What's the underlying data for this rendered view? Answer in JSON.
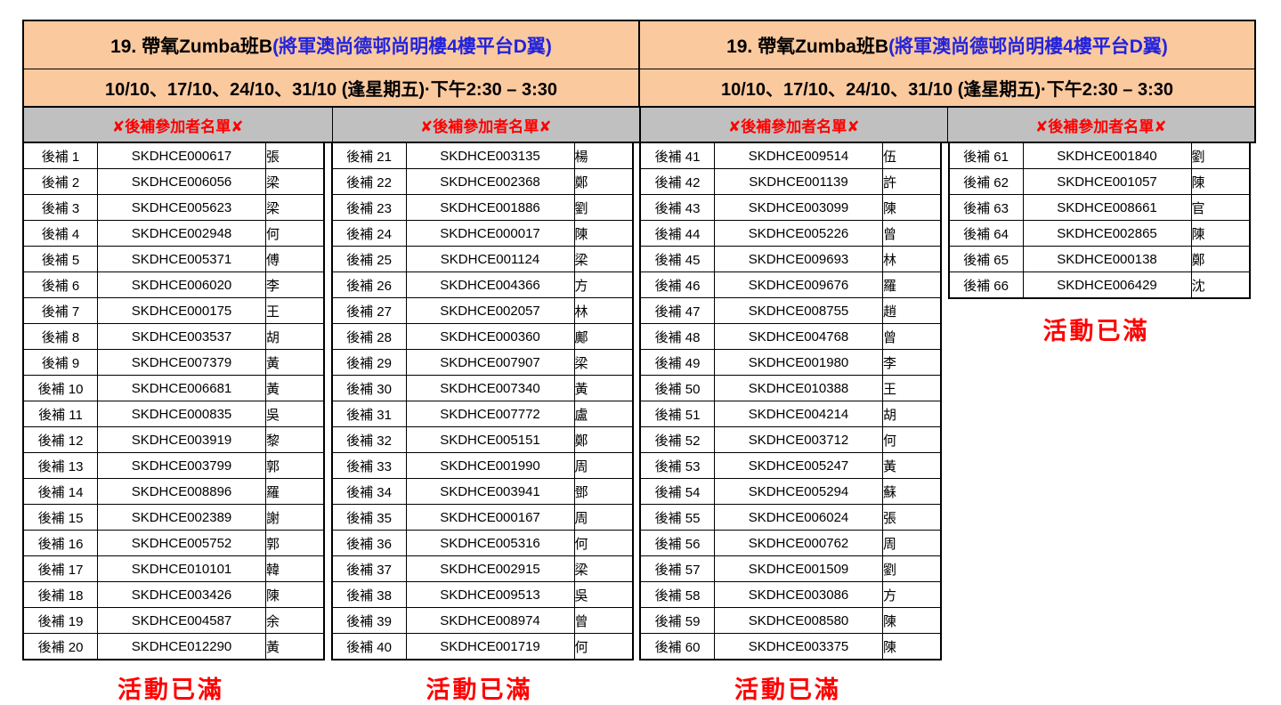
{
  "header": {
    "title_black": "19. 帶氧Zumba班B ",
    "title_blue": "(將軍澳尚德邨尚明樓4樓平台D翼)",
    "schedule": "10/10、17/10、24/10、31/10 (逢星期五)·下午2:30 – 3:30"
  },
  "labels": {
    "waitlist_header": "✘後補參加者名單✘",
    "activity_full": "活動已滿"
  },
  "colors": {
    "header_bg": "#FBC99E",
    "banner_bg": "#C0C0C0",
    "alert_red": "#FF0000",
    "location_blue": "#2323DC",
    "border": "#000000"
  },
  "groups": [
    {
      "rows": [
        {
          "label": "後補 1",
          "code": "SKDHCE000617",
          "name": "張"
        },
        {
          "label": "後補 2",
          "code": "SKDHCE006056",
          "name": "梁"
        },
        {
          "label": "後補 3",
          "code": "SKDHCE005623",
          "name": "梁"
        },
        {
          "label": "後補 4",
          "code": "SKDHCE002948",
          "name": "何"
        },
        {
          "label": "後補 5",
          "code": "SKDHCE005371",
          "name": "傅"
        },
        {
          "label": "後補 6",
          "code": "SKDHCE006020",
          "name": "李"
        },
        {
          "label": "後補 7",
          "code": "SKDHCE000175",
          "name": "王"
        },
        {
          "label": "後補 8",
          "code": "SKDHCE003537",
          "name": "胡"
        },
        {
          "label": "後補 9",
          "code": "SKDHCE007379",
          "name": "黃"
        },
        {
          "label": "後補 10",
          "code": "SKDHCE006681",
          "name": "黃"
        },
        {
          "label": "後補 11",
          "code": "SKDHCE000835",
          "name": "吳"
        },
        {
          "label": "後補 12",
          "code": "SKDHCE003919",
          "name": "黎"
        },
        {
          "label": "後補 13",
          "code": "SKDHCE003799",
          "name": "郭"
        },
        {
          "label": "後補 14",
          "code": "SKDHCE008896",
          "name": "羅"
        },
        {
          "label": "後補 15",
          "code": "SKDHCE002389",
          "name": "謝"
        },
        {
          "label": "後補 16",
          "code": "SKDHCE005752",
          "name": "郭"
        },
        {
          "label": "後補 17",
          "code": "SKDHCE010101",
          "name": "韓"
        },
        {
          "label": "後補 18",
          "code": "SKDHCE003426",
          "name": "陳"
        },
        {
          "label": "後補 19",
          "code": "SKDHCE004587",
          "name": "余"
        },
        {
          "label": "後補 20",
          "code": "SKDHCE012290",
          "name": "黃"
        }
      ]
    },
    {
      "rows": [
        {
          "label": "後補 21",
          "code": "SKDHCE003135",
          "name": "楊"
        },
        {
          "label": "後補 22",
          "code": "SKDHCE002368",
          "name": "鄭"
        },
        {
          "label": "後補 23",
          "code": "SKDHCE001886",
          "name": "劉"
        },
        {
          "label": "後補 24",
          "code": "SKDHCE000017",
          "name": "陳"
        },
        {
          "label": "後補 25",
          "code": "SKDHCE001124",
          "name": "梁"
        },
        {
          "label": "後補 26",
          "code": "SKDHCE004366",
          "name": "方"
        },
        {
          "label": "後補 27",
          "code": "SKDHCE002057",
          "name": "林"
        },
        {
          "label": "後補 28",
          "code": "SKDHCE000360",
          "name": "鄺"
        },
        {
          "label": "後補 29",
          "code": "SKDHCE007907",
          "name": "梁"
        },
        {
          "label": "後補 30",
          "code": "SKDHCE007340",
          "name": "黃"
        },
        {
          "label": "後補 31",
          "code": "SKDHCE007772",
          "name": "盧"
        },
        {
          "label": "後補 32",
          "code": "SKDHCE005151",
          "name": "鄭"
        },
        {
          "label": "後補 33",
          "code": "SKDHCE001990",
          "name": "周"
        },
        {
          "label": "後補 34",
          "code": "SKDHCE003941",
          "name": "鄧"
        },
        {
          "label": "後補 35",
          "code": "SKDHCE000167",
          "name": "周"
        },
        {
          "label": "後補 36",
          "code": "SKDHCE005316",
          "name": "何"
        },
        {
          "label": "後補 37",
          "code": "SKDHCE002915",
          "name": "梁"
        },
        {
          "label": "後補 38",
          "code": "SKDHCE009513",
          "name": "吳"
        },
        {
          "label": "後補 39",
          "code": "SKDHCE008974",
          "name": "曾"
        },
        {
          "label": "後補 40",
          "code": "SKDHCE001719",
          "name": "何"
        }
      ]
    },
    {
      "rows": [
        {
          "label": "後補 41",
          "code": "SKDHCE009514",
          "name": "伍"
        },
        {
          "label": "後補 42",
          "code": "SKDHCE001139",
          "name": "許"
        },
        {
          "label": "後補 43",
          "code": "SKDHCE003099",
          "name": "陳"
        },
        {
          "label": "後補 44",
          "code": "SKDHCE005226",
          "name": "曾"
        },
        {
          "label": "後補 45",
          "code": "SKDHCE009693",
          "name": "林"
        },
        {
          "label": "後補 46",
          "code": "SKDHCE009676",
          "name": "羅"
        },
        {
          "label": "後補 47",
          "code": "SKDHCE008755",
          "name": "趙"
        },
        {
          "label": "後補 48",
          "code": "SKDHCE004768",
          "name": "曾"
        },
        {
          "label": "後補 49",
          "code": "SKDHCE001980",
          "name": "李"
        },
        {
          "label": "後補 50",
          "code": "SKDHCE010388",
          "name": "王"
        },
        {
          "label": "後補 51",
          "code": "SKDHCE004214",
          "name": "胡"
        },
        {
          "label": "後補 52",
          "code": "SKDHCE003712",
          "name": "何"
        },
        {
          "label": "後補 53",
          "code": "SKDHCE005247",
          "name": "黃"
        },
        {
          "label": "後補 54",
          "code": "SKDHCE005294",
          "name": "蘇"
        },
        {
          "label": "後補 55",
          "code": "SKDHCE006024",
          "name": "張"
        },
        {
          "label": "後補 56",
          "code": "SKDHCE000762",
          "name": "周"
        },
        {
          "label": "後補 57",
          "code": "SKDHCE001509",
          "name": "劉"
        },
        {
          "label": "後補 58",
          "code": "SKDHCE003086",
          "name": "方"
        },
        {
          "label": "後補 59",
          "code": "SKDHCE008580",
          "name": "陳"
        },
        {
          "label": "後補 60",
          "code": "SKDHCE003375",
          "name": "陳"
        }
      ]
    },
    {
      "rows": [
        {
          "label": "後補 61",
          "code": "SKDHCE001840",
          "name": "劉"
        },
        {
          "label": "後補 62",
          "code": "SKDHCE001057",
          "name": "陳"
        },
        {
          "label": "後補 63",
          "code": "SKDHCE008661",
          "name": "官"
        },
        {
          "label": "後補 64",
          "code": "SKDHCE002865",
          "name": "陳"
        },
        {
          "label": "後補 65",
          "code": "SKDHCE000138",
          "name": "鄭"
        },
        {
          "label": "後補 66",
          "code": "SKDHCE006429",
          "name": "沈"
        }
      ]
    }
  ]
}
